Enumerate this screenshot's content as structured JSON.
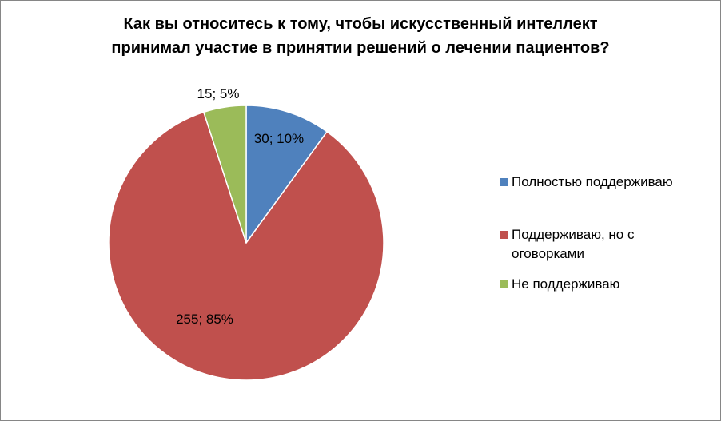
{
  "chart_data": {
    "type": "pie",
    "title": "Как вы относитесь к тому, чтобы искусственный интеллект принимал участие в принятии решений о лечении пациентов?",
    "title_lines": [
      "Как вы относитесь к тому, чтобы искусственный интеллект",
      "принимал участие в принятии решений о лечении пациентов?"
    ],
    "legend_position": "right",
    "slices": [
      {
        "name": " Полностью поддерживаю",
        "value": 30,
        "percent": 10,
        "label": "30; 10%",
        "color": "#4F81BD"
      },
      {
        "name": "Поддерживаю, но с оговорками",
        "value": 255,
        "percent": 85,
        "label": "255; 85%",
        "color": "#C0504D"
      },
      {
        "name": "Не поддерживаю",
        "value": 15,
        "percent": 5,
        "label": "15; 5%",
        "color": "#9BBB59"
      }
    ]
  }
}
